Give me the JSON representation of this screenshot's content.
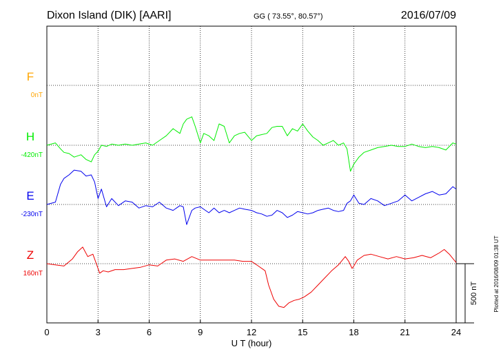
{
  "chart_data": {
    "type": "line",
    "title": "Dixon Island (DIK)  [AARI]",
    "coordinates": "GG ( 73.55°,  80.57°)",
    "date": "2016/07/09",
    "xlabel": "U T (hour)",
    "xlim": [
      0,
      24
    ],
    "x_ticks": [
      "0",
      "3",
      "6",
      "9",
      "12",
      "15",
      "18",
      "21",
      "24"
    ],
    "grid": true,
    "plotted_note": "Plotted at 2016/08/09 01:38 UT",
    "scale_label": "500 nT",
    "scale_nT": 500,
    "series": [
      {
        "name": "F",
        "baseline_label": "0nT",
        "color": "#ffa500",
        "x": [],
        "y": []
      },
      {
        "name": "H",
        "baseline_label": "-420nT",
        "color": "#00ee00",
        "x": [
          0,
          0.5,
          0.8,
          1.0,
          1.3,
          1.6,
          2.0,
          2.3,
          2.6,
          2.8,
          3.0,
          3.2,
          3.5,
          3.8,
          4.2,
          4.6,
          5.0,
          5.4,
          5.8,
          6.2,
          6.6,
          7.0,
          7.4,
          7.8,
          8.0,
          8.2,
          8.5,
          8.7,
          9.0,
          9.2,
          9.5,
          9.8,
          10.1,
          10.4,
          10.7,
          11.0,
          11.3,
          11.6,
          12.0,
          12.3,
          12.6,
          12.9,
          13.2,
          13.5,
          13.8,
          14.1,
          14.4,
          14.7,
          15.0,
          15.3,
          15.6,
          15.9,
          16.2,
          16.5,
          16.8,
          17.1,
          17.4,
          17.6,
          17.8,
          18.0,
          18.3,
          18.6,
          19.0,
          19.4,
          19.8,
          20.2,
          20.6,
          21.0,
          21.4,
          21.8,
          22.2,
          22.6,
          23.0,
          23.4,
          23.8,
          24.0
        ],
        "y": [
          -420,
          -400,
          -450,
          -480,
          -490,
          -520,
          -500,
          -540,
          -560,
          -500,
          -470,
          -420,
          -430,
          -410,
          -420,
          -410,
          -420,
          -410,
          -400,
          -420,
          -380,
          -340,
          -280,
          -320,
          -240,
          -200,
          -180,
          -260,
          -400,
          -320,
          -340,
          -380,
          -240,
          -260,
          -400,
          -340,
          -320,
          -310,
          -380,
          -340,
          -330,
          -320,
          -270,
          -260,
          -260,
          -340,
          -280,
          -300,
          -240,
          -300,
          -350,
          -380,
          -420,
          -400,
          -380,
          -420,
          -400,
          -450,
          -640,
          -580,
          -520,
          -480,
          -460,
          -440,
          -430,
          -420,
          -430,
          -430,
          -410,
          -430,
          -440,
          -430,
          -440,
          -460,
          -400,
          -410
        ]
      },
      {
        "name": "E",
        "baseline_label": "-230nT",
        "color": "#0000ee",
        "x": [
          0,
          0.5,
          0.8,
          1.0,
          1.3,
          1.6,
          2.0,
          2.3,
          2.6,
          2.8,
          3.0,
          3.2,
          3.5,
          3.8,
          4.2,
          4.6,
          5.0,
          5.4,
          5.8,
          6.2,
          6.6,
          7.0,
          7.4,
          7.8,
          8.0,
          8.2,
          8.5,
          8.7,
          9.0,
          9.2,
          9.5,
          9.8,
          10.1,
          10.4,
          10.7,
          11.0,
          11.3,
          11.6,
          12.0,
          12.3,
          12.6,
          12.9,
          13.2,
          13.5,
          13.8,
          14.1,
          14.4,
          14.7,
          15.0,
          15.3,
          15.6,
          15.9,
          16.2,
          16.5,
          16.8,
          17.1,
          17.4,
          17.6,
          17.8,
          18.0,
          18.3,
          18.6,
          19.0,
          19.4,
          19.8,
          20.2,
          20.6,
          21.0,
          21.4,
          21.8,
          22.2,
          22.6,
          23.0,
          23.4,
          23.8,
          24.0
        ],
        "y": [
          -230,
          -210,
          -60,
          -10,
          20,
          60,
          50,
          10,
          20,
          -40,
          -180,
          -100,
          -250,
          -180,
          -240,
          -200,
          -210,
          -260,
          -240,
          -250,
          -210,
          -260,
          -280,
          -240,
          -250,
          -400,
          -280,
          -260,
          -250,
          -270,
          -300,
          -260,
          -300,
          -280,
          -300,
          -280,
          -260,
          -270,
          -280,
          -300,
          -310,
          -330,
          -320,
          -280,
          -300,
          -340,
          -320,
          -290,
          -300,
          -310,
          -300,
          -280,
          -270,
          -260,
          -280,
          -290,
          -280,
          -220,
          -200,
          -150,
          -220,
          -230,
          -180,
          -200,
          -240,
          -220,
          -200,
          -150,
          -200,
          -170,
          -140,
          -120,
          -150,
          -140,
          -80,
          -100
        ]
      },
      {
        "name": "Z",
        "baseline_label": "160nT",
        "color": "#ee0000",
        "x": [
          0,
          0.5,
          1.0,
          1.5,
          1.8,
          2.1,
          2.4,
          2.7,
          2.9,
          3.1,
          3.3,
          3.6,
          4.0,
          4.5,
          5.0,
          5.5,
          6.0,
          6.5,
          7.0,
          7.5,
          8.0,
          8.5,
          9.0,
          9.5,
          10.0,
          10.5,
          11.0,
          11.5,
          12.0,
          12.4,
          12.8,
          13.0,
          13.3,
          13.6,
          13.9,
          14.2,
          14.5,
          14.8,
          15.1,
          15.5,
          15.9,
          16.3,
          16.7,
          17.1,
          17.5,
          17.7,
          17.9,
          18.0,
          18.2,
          18.6,
          19.0,
          19.5,
          20.0,
          20.5,
          21.0,
          21.5,
          22.0,
          22.5,
          23.0,
          23.3,
          23.6,
          24.0
        ],
        "y": [
          160,
          150,
          140,
          200,
          260,
          300,
          220,
          240,
          160,
          80,
          100,
          90,
          110,
          110,
          120,
          130,
          150,
          140,
          190,
          200,
          180,
          220,
          190,
          190,
          190,
          190,
          190,
          180,
          180,
          140,
          100,
          -20,
          -140,
          -200,
          -210,
          -170,
          -150,
          -140,
          -120,
          -80,
          -20,
          40,
          100,
          150,
          220,
          180,
          120,
          140,
          190,
          230,
          240,
          220,
          200,
          220,
          200,
          210,
          230,
          210,
          250,
          280,
          240,
          170
        ]
      }
    ]
  }
}
